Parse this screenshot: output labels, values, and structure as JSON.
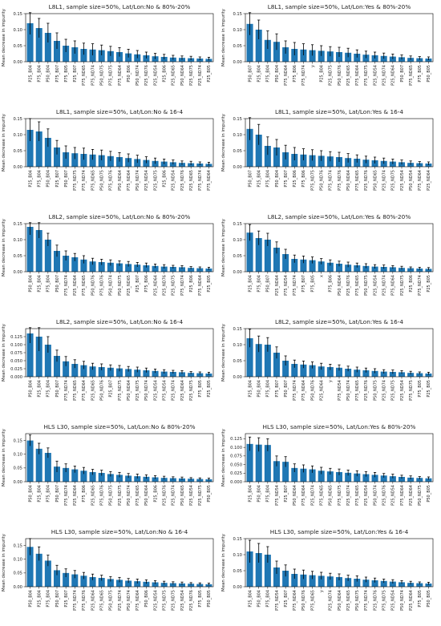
{
  "chart_data": [
    {
      "type": "bar",
      "title": "L8L1, sample size=50%, Lat/Lon:No & 80%-20%",
      "ylabel": "Mean decrease in impurity",
      "ylim": [
        0,
        0.15
      ],
      "yticks": [
        "0.00",
        "0.05",
        "0.10",
        "0.15"
      ],
      "yticks_values": [
        0,
        0.05,
        0.1,
        0.15
      ],
      "categories": [
        "P25_B04",
        "P75_B04",
        "P50_B04",
        "P75_B07",
        "P75_B05",
        "P25_B07",
        "P75_ND65",
        "P75_ND74",
        "P50_ND75",
        "P75_ND75",
        "P75_ND64",
        "P50_B06",
        "P50_ND74",
        "P25_ND76",
        "P25_ND54",
        "P25_B06",
        "P25_ND65",
        "P50_ND64",
        "P25_ND75",
        "P25_ND74",
        "P25_B05"
      ],
      "values": [
        0.12,
        0.105,
        0.09,
        0.065,
        0.05,
        0.045,
        0.04,
        0.038,
        0.036,
        0.033,
        0.03,
        0.026,
        0.023,
        0.02,
        0.017,
        0.015,
        0.013,
        0.012,
        0.011,
        0.01,
        0.009
      ],
      "errors": [
        0.035,
        0.03,
        0.03,
        0.025,
        0.02,
        0.02,
        0.018,
        0.018,
        0.016,
        0.015,
        0.014,
        0.013,
        0.012,
        0.01,
        0.009,
        0.008,
        0.007,
        0.006,
        0.006,
        0.005,
        0.005
      ]
    },
    {
      "type": "bar",
      "title": "L8L1, sample size=50%, Lat/Lon:Yes & 80%-20%",
      "ylabel": "Mean decrease in impurity",
      "ylim": [
        0,
        0.15
      ],
      "yticks": [
        "0.00",
        "0.05",
        "0.10",
        "0.15"
      ],
      "yticks_values": [
        0,
        0.05,
        0.1,
        0.15
      ],
      "categories": [
        "P50_B07",
        "P25_B04",
        "P75_B04",
        "P50_B04",
        "P75_ND64",
        "P75_B06",
        "P75_ND74",
        "y",
        "P25_B04",
        "P25_ND75",
        "P50_ND76",
        "P25_ND65",
        "P75_ND64",
        "P75_ND75",
        "P25_ND54",
        "P25_ND74",
        "P25_ND64",
        "P50_B07",
        "P75_ND65",
        "P75_B05",
        "P50_B05"
      ],
      "values": [
        0.118,
        0.1,
        0.068,
        0.062,
        0.045,
        0.04,
        0.038,
        0.036,
        0.034,
        0.032,
        0.03,
        0.028,
        0.025,
        0.022,
        0.02,
        0.018,
        0.016,
        0.014,
        0.012,
        0.011,
        0.01
      ],
      "errors": [
        0.035,
        0.03,
        0.028,
        0.025,
        0.02,
        0.02,
        0.018,
        0.017,
        0.016,
        0.015,
        0.015,
        0.014,
        0.012,
        0.011,
        0.01,
        0.009,
        0.008,
        0.007,
        0.006,
        0.005,
        0.005
      ]
    },
    {
      "type": "bar",
      "title": "L8L1, sample size=50%, Lat/Lon:No & 16-4",
      "ylabel": "Mean decrease in impurity",
      "ylim": [
        0,
        0.15
      ],
      "yticks": [
        "0.00",
        "0.05",
        "0.10",
        "0.15"
      ],
      "yticks_values": [
        0,
        0.05,
        0.1,
        0.15
      ],
      "categories": [
        "P25_B04",
        "P75_B04",
        "P50_B04",
        "P25_B07",
        "P50_B07",
        "P75_ND75",
        "P75_ND74",
        "P75_ND65",
        "P50_ND75",
        "P75_ND76",
        "P50_ND64",
        "P75_ND64",
        "P50_ND74",
        "P25_ND54",
        "P25_ND75",
        "P25_B06",
        "P25_ND54",
        "P25_ND76",
        "P25_ND65",
        "P75_ND74",
        "P75_ND64"
      ],
      "values": [
        0.115,
        0.11,
        0.09,
        0.06,
        0.045,
        0.042,
        0.04,
        0.038,
        0.036,
        0.033,
        0.03,
        0.027,
        0.024,
        0.021,
        0.018,
        0.016,
        0.014,
        0.012,
        0.011,
        0.01,
        0.009
      ],
      "errors": [
        0.035,
        0.03,
        0.028,
        0.022,
        0.02,
        0.018,
        0.018,
        0.016,
        0.016,
        0.015,
        0.014,
        0.013,
        0.012,
        0.01,
        0.009,
        0.008,
        0.007,
        0.006,
        0.006,
        0.005,
        0.005
      ]
    },
    {
      "type": "bar",
      "title": "L8L1, sample size=50%, Lat/Lon:Yes & 16-4",
      "ylabel": "Mean decrease in impurity",
      "ylim": [
        0,
        0.15
      ],
      "yticks": [
        "0.00",
        "0.05",
        "0.10",
        "0.15"
      ],
      "yticks_values": [
        0,
        0.05,
        0.1,
        0.15
      ],
      "categories": [
        "P50_B07",
        "P25_B04",
        "P75_B04",
        "P50_B04",
        "P75_B07",
        "P25_B06",
        "P75_B06",
        "P75_ND75",
        "P50_ND76",
        "P75_ND74",
        "P75_ND76",
        "P50_ND64",
        "P75_ND65",
        "P25_ND76",
        "P50_ND65",
        "P25_ND74",
        "P25_ND75",
        "P25_ND54",
        "P50_ND54",
        "P75_ND64",
        "P25_ND64"
      ],
      "values": [
        0.118,
        0.1,
        0.065,
        0.06,
        0.045,
        0.04,
        0.038,
        0.036,
        0.034,
        0.032,
        0.03,
        0.027,
        0.025,
        0.022,
        0.02,
        0.018,
        0.016,
        0.014,
        0.012,
        0.011,
        0.01
      ],
      "errors": [
        0.035,
        0.032,
        0.028,
        0.025,
        0.022,
        0.02,
        0.018,
        0.017,
        0.016,
        0.015,
        0.015,
        0.014,
        0.012,
        0.011,
        0.01,
        0.009,
        0.008,
        0.007,
        0.006,
        0.005,
        0.005
      ]
    },
    {
      "type": "bar",
      "title": "L8L2, sample size=50%, Lat/Lon:No & 80%-20%",
      "ylabel": "Mean decrease in impurity",
      "ylim": [
        0,
        0.15
      ],
      "yticks": [
        "0.00",
        "0.05",
        "0.10",
        "0.15"
      ],
      "yticks_values": [
        0,
        0.05,
        0.1,
        0.15
      ],
      "categories": [
        "P50_B04",
        "P25_B04",
        "P75_B04",
        "P50_B07",
        "P75_ND74",
        "P25_ND64",
        "P75_ND65",
        "P50_ND76",
        "P75_ND76",
        "P50_ND74",
        "P50_ND75",
        "P25_ND65",
        "P25_B07",
        "P75_B06",
        "P25_ND64",
        "P25_ND76",
        "P25_ND75",
        "P75_ND74",
        "P25_B06",
        "P75_ND64",
        "P25_B05"
      ],
      "values": [
        0.14,
        0.13,
        0.1,
        0.065,
        0.05,
        0.045,
        0.038,
        0.032,
        0.03,
        0.028,
        0.026,
        0.024,
        0.022,
        0.02,
        0.018,
        0.016,
        0.015,
        0.014,
        0.012,
        0.011,
        0.01
      ],
      "errors": [
        0.025,
        0.025,
        0.02,
        0.018,
        0.015,
        0.012,
        0.012,
        0.01,
        0.009,
        0.009,
        0.008,
        0.008,
        0.007,
        0.007,
        0.006,
        0.006,
        0.005,
        0.005,
        0.004,
        0.004,
        0.004
      ]
    },
    {
      "type": "bar",
      "title": "L8L2, sample size=50%, Lat/Lon:Yes & 80%-20%",
      "ylabel": "Mean decrease in impurity",
      "ylim": [
        0,
        0.15
      ],
      "yticks": [
        "0.00",
        "0.05",
        "0.10",
        "0.15"
      ],
      "yticks_values": [
        0,
        0.05,
        0.1,
        0.15
      ],
      "categories": [
        "P25_B04",
        "P75_B04",
        "P50_B07",
        "P25_ND64",
        "P75_ND54",
        "P75_ND74",
        "P75_B07",
        "P75_B05",
        "x",
        "P75_B06",
        "P50_ND64",
        "P25_ND76",
        "P75_ND65",
        "P50_ND75",
        "P25_ND54",
        "P25_ND74",
        "P75_ND64",
        "P25_ND75",
        "P25_B06",
        "P75_ND74",
        "P25_B05"
      ],
      "values": [
        0.122,
        0.105,
        0.1,
        0.075,
        0.055,
        0.04,
        0.038,
        0.036,
        0.032,
        0.028,
        0.025,
        0.022,
        0.02,
        0.018,
        0.016,
        0.015,
        0.014,
        0.012,
        0.011,
        0.01,
        0.009
      ],
      "errors": [
        0.025,
        0.022,
        0.02,
        0.018,
        0.015,
        0.012,
        0.011,
        0.01,
        0.009,
        0.009,
        0.008,
        0.008,
        0.007,
        0.007,
        0.006,
        0.006,
        0.005,
        0.005,
        0.004,
        0.004,
        0.004
      ]
    },
    {
      "type": "bar",
      "title": "L8L2, sample size=50%, Lat/Lon:No & 16-4",
      "ylabel": "Mean decrease in impurity",
      "ylim": [
        0,
        0.15
      ],
      "yticks": [
        "0.000",
        "0.025",
        "0.050",
        "0.075",
        "0.100",
        "0.125"
      ],
      "yticks_values": [
        0,
        0.025,
        0.05,
        0.075,
        0.1,
        0.125
      ],
      "categories": [
        "P50_B04",
        "P25_B04",
        "P75_B04",
        "P50_B07",
        "P75_ND74",
        "P75_ND65",
        "P75_ND64",
        "P25_ND65",
        "P50_ND76",
        "P25_B07",
        "P75_ND75",
        "P50_ND64",
        "P25_ND75",
        "P50_ND74",
        "P25_ND54",
        "P75_ND54",
        "P25_ND74",
        "P25_ND64",
        "P25_ND75",
        "P75_B05",
        "P25_B05"
      ],
      "values": [
        0.135,
        0.125,
        0.1,
        0.065,
        0.048,
        0.04,
        0.036,
        0.032,
        0.03,
        0.028,
        0.026,
        0.024,
        0.022,
        0.02,
        0.018,
        0.016,
        0.015,
        0.014,
        0.012,
        0.011,
        0.01
      ],
      "errors": [
        0.03,
        0.045,
        0.025,
        0.018,
        0.015,
        0.013,
        0.012,
        0.01,
        0.01,
        0.009,
        0.009,
        0.008,
        0.008,
        0.007,
        0.006,
        0.006,
        0.005,
        0.005,
        0.004,
        0.004,
        0.004
      ]
    },
    {
      "type": "bar",
      "title": "L8L2, sample size=50%, Lat/Lon:Yes & 16-4",
      "ylabel": "Mean decrease in impurity",
      "ylim": [
        0,
        0.15
      ],
      "yticks": [
        "0.00",
        "0.05",
        "0.10",
        "0.15"
      ],
      "yticks_values": [
        0,
        0.05,
        0.1,
        0.15
      ],
      "categories": [
        "P25_B04",
        "P50_B04",
        "P75_B04",
        "P75_B07",
        "P50_B07",
        "P75_ND74",
        "P75_ND64",
        "P50_ND76",
        "P25_ND64",
        "y",
        "P75_ND54",
        "P50_ND74",
        "P75_ND65",
        "P25_ND76",
        "P50_ND75",
        "P25_ND74",
        "P25_ND75",
        "P25_ND54",
        "P75_ND75",
        "P75_B05",
        "P25_B05"
      ],
      "values": [
        0.12,
        0.102,
        0.1,
        0.075,
        0.05,
        0.04,
        0.038,
        0.036,
        0.032,
        0.03,
        0.028,
        0.025,
        0.022,
        0.02,
        0.018,
        0.016,
        0.015,
        0.014,
        0.012,
        0.011,
        0.01
      ],
      "errors": [
        0.028,
        0.025,
        0.022,
        0.018,
        0.015,
        0.012,
        0.011,
        0.01,
        0.01,
        0.009,
        0.009,
        0.008,
        0.008,
        0.007,
        0.007,
        0.006,
        0.006,
        0.005,
        0.005,
        0.004,
        0.004
      ]
    },
    {
      "type": "bar",
      "title": "HLS L30, sample size=50%, Lat/Lon:No & 80%-20%",
      "ylabel": "Mean decrease in impurity",
      "ylim": [
        0,
        0.175
      ],
      "yticks": [
        "0.00",
        "0.05",
        "0.10",
        "0.15"
      ],
      "yticks_values": [
        0,
        0.05,
        0.1,
        0.15
      ],
      "categories": [
        "P50_B04",
        "P25_B04",
        "P75_B04",
        "P50_B07",
        "P75_ND74",
        "P25_ND64",
        "P75_B06",
        "P25_ND65",
        "P75_ND76",
        "P50_ND75",
        "P25_ND75",
        "P50_ND74",
        "P75_ND65",
        "P50_ND64",
        "P25_B06",
        "P25_ND76",
        "P25_ND74",
        "P50_ND65",
        "P25_ND54",
        "P25_ND75",
        "P50_B05"
      ],
      "values": [
        0.15,
        0.12,
        0.105,
        0.055,
        0.05,
        0.045,
        0.04,
        0.035,
        0.032,
        0.028,
        0.025,
        0.022,
        0.02,
        0.018,
        0.016,
        0.014,
        0.013,
        0.012,
        0.011,
        0.01,
        0.009
      ],
      "errors": [
        0.02,
        0.02,
        0.018,
        0.02,
        0.015,
        0.012,
        0.012,
        0.01,
        0.01,
        0.009,
        0.009,
        0.008,
        0.008,
        0.007,
        0.006,
        0.006,
        0.005,
        0.005,
        0.004,
        0.004,
        0.004
      ]
    },
    {
      "type": "bar",
      "title": "HLS L30, sample size=50%, Lat/Lon:Yes & 80%-20%",
      "ylabel": "Mean decrease in impurity",
      "ylim": [
        0,
        0.14
      ],
      "yticks": [
        "0.000",
        "0.025",
        "0.050",
        "0.075",
        "0.100",
        "0.125"
      ],
      "yticks_values": [
        0,
        0.025,
        0.05,
        0.075,
        0.1,
        0.125
      ],
      "categories": [
        "P25_B04",
        "P50_B04",
        "P75_B04",
        "P75_ND54",
        "P25_B07",
        "P50_ND64",
        "P75_ND64",
        "P25_ND74",
        "P75_ND65",
        "P50_ND65",
        "P75_ND75",
        "P25_ND74",
        "P75_ND65",
        "P25_ND54",
        "P50_ND74",
        "P25_ND76",
        "P25_ND54",
        "P75_ND64",
        "P25_ND64",
        "P50_ND75",
        "P50_B05"
      ],
      "values": [
        0.11,
        0.108,
        0.107,
        0.06,
        0.058,
        0.04,
        0.038,
        0.036,
        0.032,
        0.03,
        0.028,
        0.026,
        0.024,
        0.022,
        0.02,
        0.018,
        0.016,
        0.014,
        0.012,
        0.011,
        0.01
      ],
      "errors": [
        0.02,
        0.02,
        0.018,
        0.015,
        0.015,
        0.012,
        0.011,
        0.01,
        0.01,
        0.009,
        0.009,
        0.008,
        0.008,
        0.007,
        0.007,
        0.006,
        0.006,
        0.005,
        0.005,
        0.004,
        0.004
      ]
    },
    {
      "type": "bar",
      "title": "HLS L30, sample size=50%, Lat/Lon:No & 16-4",
      "ylabel": "Mean decrease in impurity",
      "ylim": [
        0,
        0.175
      ],
      "yticks": [
        "0.00",
        "0.05",
        "0.10",
        "0.15"
      ],
      "yticks_values": [
        0,
        0.05,
        0.1,
        0.15
      ],
      "categories": [
        "P50_B04",
        "P25_B04",
        "P75_B04",
        "P50_B07",
        "P25_B07",
        "P75_ND74",
        "P75_ND76",
        "P25_ND64",
        "P75_ND65",
        "P50_ND75",
        "P25_ND74",
        "P50_ND74",
        "P75_ND64",
        "P50_B06",
        "P25_ND54",
        "P75_ND75",
        "P25_ND75",
        "P25_ND54",
        "P25_ND76",
        "P75_B05",
        "P50_B05"
      ],
      "values": [
        0.145,
        0.12,
        0.095,
        0.06,
        0.05,
        0.045,
        0.04,
        0.035,
        0.032,
        0.028,
        0.025,
        0.022,
        0.02,
        0.018,
        0.016,
        0.014,
        0.013,
        0.012,
        0.011,
        0.01,
        0.009
      ],
      "errors": [
        0.03,
        0.025,
        0.02,
        0.018,
        0.015,
        0.014,
        0.012,
        0.011,
        0.01,
        0.009,
        0.009,
        0.008,
        0.008,
        0.007,
        0.006,
        0.006,
        0.005,
        0.005,
        0.004,
        0.004,
        0.004
      ]
    },
    {
      "type": "bar",
      "title": "HLS L30, sample size=50%, Lat/Lon:Yes & 16-4",
      "ylabel": "Mean decrease in impurity",
      "ylim": [
        0,
        0.15
      ],
      "yticks": [
        "0.00",
        "0.05",
        "0.10",
        "0.15"
      ],
      "yticks_values": [
        0,
        0.05,
        0.1,
        0.15
      ],
      "categories": [
        "P25_B04",
        "P50_B04",
        "P75_B04",
        "P75_ND54",
        "P25_B07",
        "P75_ND64",
        "P50_ND76",
        "P75_ND65",
        "y",
        "P25_ND74",
        "P50_ND64",
        "P25_ND65",
        "P50_ND75",
        "P75_ND74",
        "P25_ND76",
        "P75_ND75",
        "P25_ND54",
        "P50_ND74",
        "P25_ND64",
        "P75_B05",
        "P50_B05"
      ],
      "values": [
        0.11,
        0.105,
        0.1,
        0.06,
        0.05,
        0.04,
        0.038,
        0.036,
        0.034,
        0.032,
        0.03,
        0.027,
        0.025,
        0.022,
        0.02,
        0.018,
        0.016,
        0.014,
        0.012,
        0.011,
        0.01
      ],
      "errors": [
        0.035,
        0.03,
        0.025,
        0.02,
        0.018,
        0.015,
        0.014,
        0.012,
        0.011,
        0.01,
        0.01,
        0.009,
        0.009,
        0.008,
        0.007,
        0.006,
        0.006,
        0.005,
        0.005,
        0.004,
        0.004
      ]
    }
  ]
}
